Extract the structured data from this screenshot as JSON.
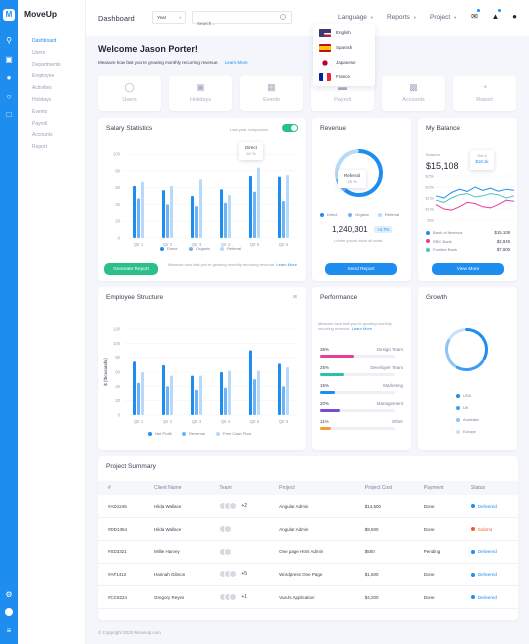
{
  "app": {
    "brand": "MoveUp"
  },
  "sidebar": {
    "items": [
      {
        "label": "Dashboard",
        "active": true
      },
      {
        "label": "Users"
      },
      {
        "label": "Departments"
      },
      {
        "label": "Employee"
      },
      {
        "label": "Activities"
      },
      {
        "label": "Holidays"
      },
      {
        "label": "Events"
      },
      {
        "label": "Payroll"
      },
      {
        "label": "Accounts"
      },
      {
        "label": "Report"
      }
    ]
  },
  "header": {
    "title": "Dashboard",
    "year_select": "Year",
    "search_placeholder": "Search...",
    "language": "Language",
    "reports": "Reports",
    "project": "Project"
  },
  "language_menu": [
    {
      "label": "English",
      "flag": "us"
    },
    {
      "label": "Spanish",
      "flag": "es"
    },
    {
      "label": "Japanese",
      "flag": "jp"
    },
    {
      "label": "France",
      "flag": "fr"
    }
  ],
  "welcome": {
    "title": "Welcome Jason Porter!",
    "subtitle": "Measure how fast you're growing monthly recurring revenue.",
    "link": "Learn More"
  },
  "tiles": [
    {
      "label": "Users",
      "icon": "users-icon"
    },
    {
      "label": "Holidays",
      "icon": "briefcase-icon"
    },
    {
      "label": "Events",
      "icon": "calendar-icon"
    },
    {
      "label": "Payroll",
      "icon": "credit-card-icon"
    },
    {
      "label": "Accounts",
      "icon": "grid-icon"
    },
    {
      "label": "Report",
      "icon": "pie-chart-icon"
    }
  ],
  "salary": {
    "title": "Salary Statistics",
    "toggle_label": "Last year comparsion",
    "tooltip_title": "Direct",
    "tooltip_value": "62 %",
    "button": "Generate Report",
    "note": "Measure how fast you're growing monthly recurring revenue.",
    "note_link": "Learn More"
  },
  "revenue": {
    "title": "Revenue",
    "donut_label": "Referral",
    "donut_value": "28 %",
    "amount": "1,240,301",
    "badge": "+3.7%",
    "desc": "Lorem ipsum dolor sit amet.",
    "button": "Send Report"
  },
  "balance": {
    "title": "My Balance",
    "label": "Balance",
    "amount": "$15,108",
    "tooltip_title": "Oct 4",
    "tooltip_value": "$18.1k",
    "accounts": [
      {
        "name": "Bank of America",
        "value": "$15,108",
        "color": "#1e8df0"
      },
      {
        "name": "RBC Bank",
        "value": "$2,845",
        "color": "#e63e9a"
      },
      {
        "name": "Frontier Bank",
        "value": "$7,500",
        "color": "#4bc0c8"
      }
    ],
    "button": "View More"
  },
  "structure": {
    "title": "Employee Structure"
  },
  "performance": {
    "title": "Performance",
    "desc": "Measure how fast you're growing monthly recurring revenue.",
    "link": "Learn More",
    "rows": [
      {
        "name": "Design Team",
        "pct": "35%",
        "value": 35,
        "color": "#e63e9a"
      },
      {
        "name": "Developer Team",
        "pct": "25%",
        "value": 25,
        "color": "#2bc0a8"
      },
      {
        "name": "Marketing",
        "pct": "15%",
        "value": 15,
        "color": "#1e8df0"
      },
      {
        "name": "Management",
        "pct": "20%",
        "value": 20,
        "color": "#7a4bd6"
      },
      {
        "name": "Other",
        "pct": "11%",
        "value": 11,
        "color": "#f0a030"
      }
    ]
  },
  "growth": {
    "title": "Growth",
    "legend": [
      {
        "label": "USA",
        "color": "#1e8df0"
      },
      {
        "label": "UK",
        "color": "#3d9df3"
      },
      {
        "label": "Australia",
        "color": "#8ec4f7"
      },
      {
        "label": "Europe",
        "color": "#c6e1fb"
      }
    ]
  },
  "projects": {
    "title": "Project Summary",
    "columns": [
      "#",
      "Client Name",
      "Team",
      "Project",
      "Project Cost",
      "Payment",
      "Status"
    ],
    "rows": [
      {
        "id": "#AD1245",
        "client": "Hilda Wallace",
        "team_more": "+2",
        "team_count": 3,
        "project": "Angular Admin",
        "cost": "$14,500",
        "payment": "Done",
        "status": "Delivered",
        "status_color": "#1e8df0"
      },
      {
        "id": "#DD1354",
        "client": "Hilda Wallace",
        "team_more": "",
        "team_count": 2,
        "project": "Angular Admin",
        "cost": "$9,500",
        "payment": "Done",
        "status": "Submit",
        "status_color": "#f05a28"
      },
      {
        "id": "#SD3321",
        "client": "Millie Harvey",
        "team_more": "",
        "team_count": 2,
        "project": "One page Html Admin",
        "cost": "$500",
        "payment": "Pending",
        "status": "Delivered",
        "status_color": "#1e8df0"
      },
      {
        "id": "#AF1412",
        "client": "Hannah Gibson",
        "team_more": "+5",
        "team_count": 3,
        "project": "Wordpress One Page",
        "cost": "$1,500",
        "payment": "Done",
        "status": "Delivered",
        "status_color": "#1e8df0"
      },
      {
        "id": "#CC8224",
        "client": "Gregory Reyes",
        "team_more": "+1",
        "team_count": 3,
        "project": "VueJs Application",
        "cost": "$4,200",
        "payment": "Done",
        "status": "Delivered",
        "status_color": "#1e8df0"
      }
    ]
  },
  "footer": "© Copyright 2020 MoveUp.com",
  "chart_data": [
    {
      "type": "bar",
      "title": "Salary Statistics",
      "categories": [
        "Qtr 1",
        "Qtr 2",
        "Qtr 3",
        "Qtr 4",
        "Qtr 5",
        "Qtr 6"
      ],
      "ylim": [
        0,
        100
      ],
      "yticks": [
        0,
        20,
        40,
        60,
        80,
        100
      ],
      "series": [
        {
          "name": "Direct",
          "color": "#1e8df0",
          "values": [
            62,
            57,
            50,
            58,
            74,
            73
          ]
        },
        {
          "name": "Organic",
          "color": "#6db3f5",
          "values": [
            47,
            40,
            38,
            42,
            55,
            44
          ]
        },
        {
          "name": "Referral",
          "color": "#b7dafa",
          "values": [
            67,
            62,
            70,
            51,
            84,
            75
          ]
        }
      ]
    },
    {
      "type": "pie",
      "title": "Revenue",
      "series": [
        {
          "name": "Direct",
          "color": "#1e8df0",
          "values": [
            62
          ]
        },
        {
          "name": "Organic",
          "color": "#6db3f5",
          "values": [
            10
          ]
        },
        {
          "name": "Referral",
          "color": "#b7dafa",
          "values": [
            28
          ]
        }
      ]
    },
    {
      "type": "line",
      "title": "My Balance",
      "ylim": [
        5000,
        25000
      ],
      "yticks": [
        "$5k",
        "$10k",
        "$15k",
        "$20k",
        "$25k"
      ],
      "series": [
        {
          "name": "Bank of America",
          "color": "#1e8df0",
          "values": [
            16,
            15,
            17.5,
            19,
            18,
            20,
            18.5,
            19.5,
            18.1,
            19,
            18.5
          ]
        },
        {
          "name": "RBC Bank",
          "color": "#e63e9a",
          "values": [
            12,
            10,
            9.5,
            11,
            13,
            12.5,
            11,
            10.5,
            12,
            14,
            13.5
          ]
        },
        {
          "name": "Frontier Bank",
          "color": "#4bc0c8",
          "values": [
            14,
            13,
            15,
            16.5,
            17,
            15.5,
            16,
            17,
            16.5,
            15,
            16
          ]
        }
      ]
    },
    {
      "type": "bar",
      "title": "Employee Structure",
      "ylabel": "$ (thousands)",
      "categories": [
        "Qtr 1",
        "Qtr 2",
        "Qtr 3",
        "Qtr 4",
        "Qtr 5",
        "Qtr 6"
      ],
      "ylim": [
        0,
        120
      ],
      "yticks": [
        0,
        20,
        40,
        60,
        80,
        100,
        120
      ],
      "series": [
        {
          "name": "Net Profit",
          "color": "#1e8df0",
          "values": [
            75,
            70,
            55,
            60,
            90,
            72
          ]
        },
        {
          "name": "Revenue",
          "color": "#6db3f5",
          "values": [
            45,
            40,
            35,
            38,
            50,
            40
          ]
        },
        {
          "name": "Free Cash Flow",
          "color": "#b7dafa",
          "values": [
            60,
            55,
            55,
            62,
            62,
            67
          ]
        }
      ]
    },
    {
      "type": "pie",
      "title": "Growth",
      "series": [
        {
          "name": "USA",
          "color": "#1e8df0",
          "values": [
            35
          ]
        },
        {
          "name": "UK",
          "color": "#3d9df3",
          "values": [
            25
          ]
        },
        {
          "name": "Australia",
          "color": "#8ec4f7",
          "values": [
            25
          ]
        },
        {
          "name": "Europe",
          "color": "#c6e1fb",
          "values": [
            15
          ]
        }
      ]
    }
  ]
}
